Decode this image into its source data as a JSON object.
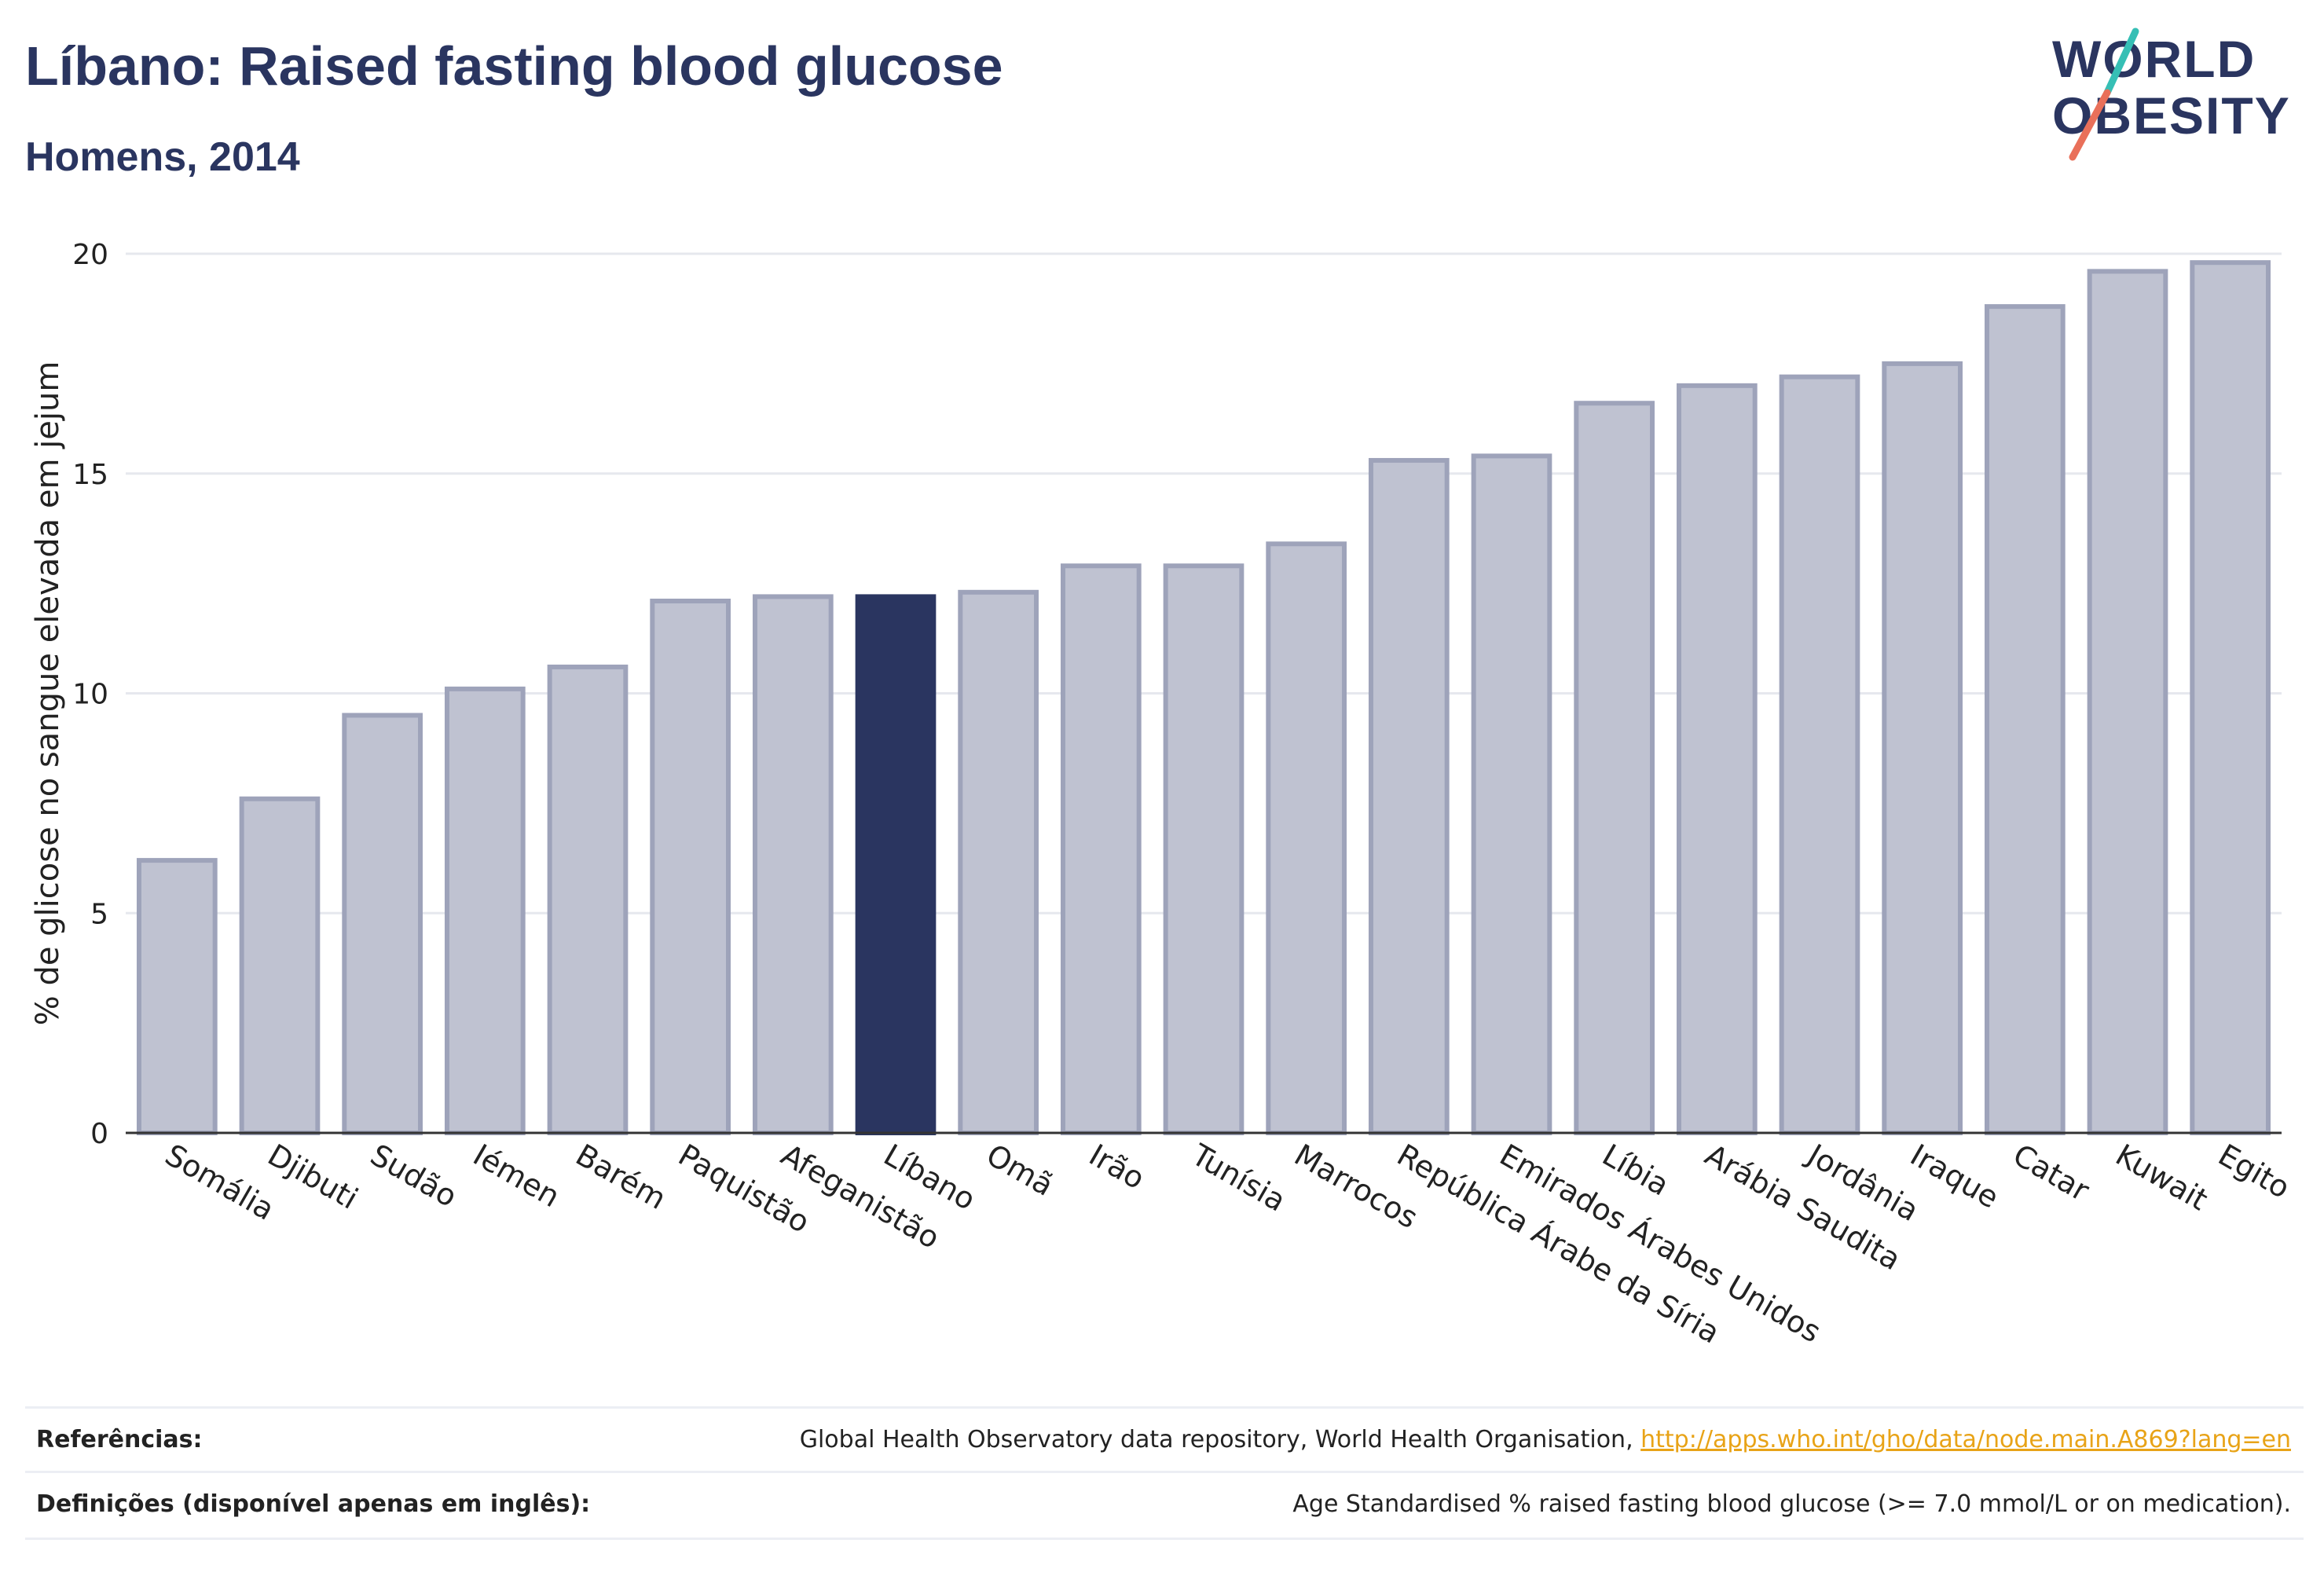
{
  "header": {
    "title": "Líbano: Raised fasting blood glucose",
    "subtitle": "Homens, 2014"
  },
  "logo": {
    "line1": "WORLD",
    "line2": "OBESITY"
  },
  "colors": {
    "highlight": "#2a3560",
    "bar_fill": "#bfc2d1",
    "bar_stroke": "#9ea3ba",
    "logo_teal": "#36bfb5",
    "logo_coral": "#e9705a",
    "link": "#e8a317"
  },
  "chart_data": {
    "type": "bar",
    "title": "Líbano: Raised fasting blood glucose",
    "subtitle": "Homens, 2014",
    "ylabel": "% de glicose no sangue elevada em jejum",
    "xlabel": "",
    "ylim": [
      0,
      20
    ],
    "yticks": [
      0,
      5,
      10,
      15,
      20
    ],
    "grid": true,
    "highlight": "Líbano",
    "categories": [
      "Somália",
      "Djibuti",
      "Sudão",
      "Iémen",
      "Barém",
      "Paquistão",
      "Afeganistão",
      "Líbano",
      "Omã",
      "Irão",
      "Tunísia",
      "Marrocos",
      "República Árabe da Síria",
      "Emirados Árabes Unidos",
      "Líbia",
      "Arábia Saudita",
      "Jordânia",
      "Iraque",
      "Catar",
      "Kuwait",
      "Egito"
    ],
    "values": [
      6.2,
      7.6,
      9.5,
      10.1,
      10.6,
      12.1,
      12.2,
      12.2,
      12.3,
      12.9,
      12.9,
      13.4,
      15.3,
      15.4,
      16.6,
      17.0,
      17.2,
      17.5,
      18.8,
      19.6,
      19.8
    ]
  },
  "footer": {
    "refs_label": "Referências:",
    "refs_text": "Global Health Observatory data repository, World Health Organisation, ",
    "refs_link": "http://apps.who.int/gho/data/node.main.A869?lang=en",
    "defs_label": "Definições (disponível apenas em inglês):",
    "defs_text": "Age Standardised % raised fasting blood glucose (>= 7.0 mmol/L or on medication)."
  }
}
